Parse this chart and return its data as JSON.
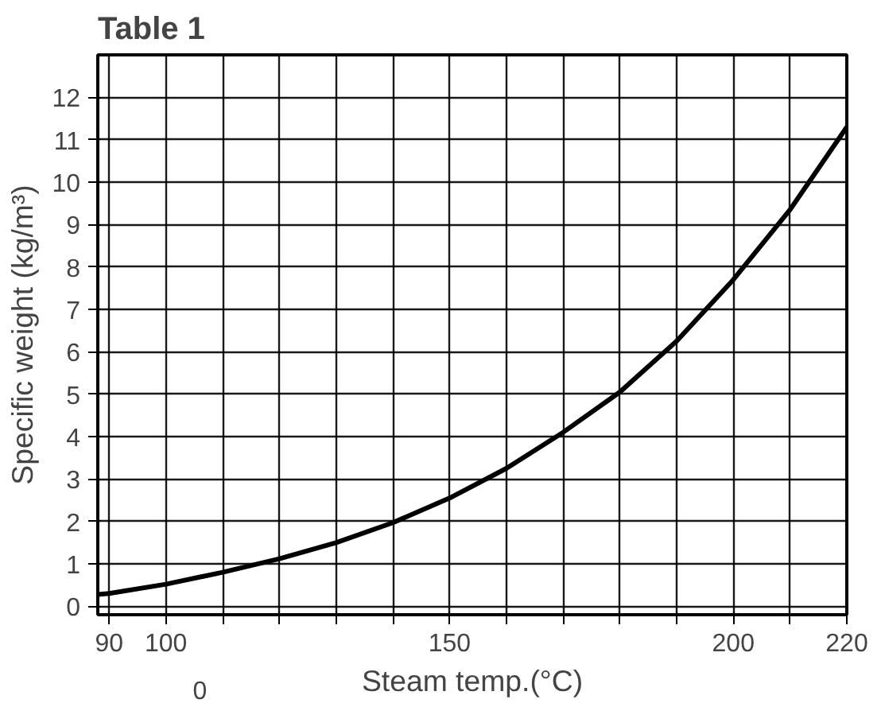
{
  "chart_data": {
    "type": "line",
    "title": "Table 1",
    "xlabel": "Steam temp.(°C)",
    "ylabel": "Specific weight (kg/m³)",
    "xlim": [
      88,
      220
    ],
    "ylim": [
      -0.2,
      13
    ],
    "xticks": [
      90,
      100,
      {
        "value": 110,
        "label": null
      },
      {
        "value": 120,
        "label": null
      },
      {
        "value": 130,
        "label": null
      },
      {
        "value": 140,
        "label": null
      },
      150,
      {
        "value": 160,
        "label": null
      },
      {
        "value": 170,
        "label": null
      },
      {
        "value": 180,
        "label": null
      },
      {
        "value": 190,
        "label": null
      },
      200,
      {
        "value": 210,
        "label": null
      },
      220
    ],
    "yticks": [
      0,
      1,
      2,
      3,
      4,
      5,
      6,
      7,
      8,
      9,
      10,
      11,
      12
    ],
    "annotations": [
      "0"
    ],
    "grid": true,
    "marker": "none",
    "line_style": "solid",
    "x": [
      88,
      90,
      100,
      110,
      120,
      130,
      140,
      150,
      160,
      170,
      180,
      190,
      200,
      210,
      220
    ],
    "series": [
      {
        "color": "#000000",
        "values": [
          0.28,
          0.3,
          0.52,
          0.8,
          1.12,
          1.5,
          1.97,
          2.55,
          3.25,
          4.1,
          5.05,
          6.25,
          7.7,
          9.35,
          11.3
        ]
      }
    ]
  }
}
